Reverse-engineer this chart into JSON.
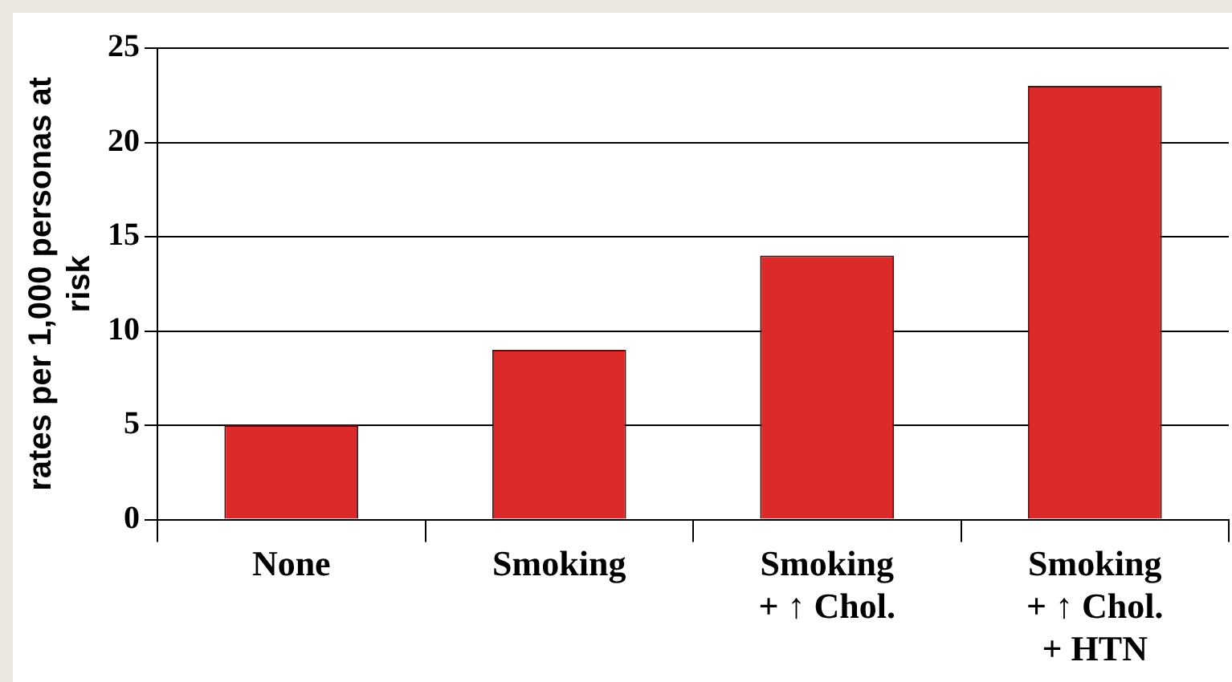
{
  "chart_data": {
    "type": "bar",
    "ylabel": "rates per 1,000 personas at risk",
    "categories": [
      "None",
      "Smoking",
      "Smoking\n+ ↑ Chol.",
      "Smoking\n+ ↑ Chol.\n+ HTN"
    ],
    "values": [
      5,
      9,
      14,
      23
    ],
    "color": "#dc2a2a",
    "ylim": [
      0,
      25
    ],
    "yticks": [
      0,
      5,
      10,
      15,
      20,
      25
    ],
    "grid": "y",
    "legend": false
  }
}
